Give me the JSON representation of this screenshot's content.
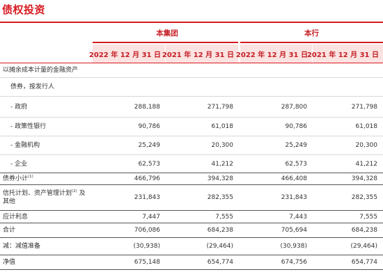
{
  "title": "债权投资",
  "groups": {
    "group": "本集团",
    "bank": "本行"
  },
  "columns": [
    "2022 年 12 月 31 日",
    "2021 年 12 月 31 日",
    "2022 年 12 月 31 日",
    "2021 年 12 月 31 日"
  ],
  "rows": [
    {
      "label": "以摊余成本计量的金融资产",
      "sup": "",
      "label2": "",
      "values": [
        "",
        "",
        "",
        ""
      ]
    },
    {
      "label": "债券，按发行人",
      "sup": "",
      "label2": "",
      "values": [
        "",
        "",
        "",
        ""
      ]
    },
    {
      "label": "- 政府",
      "sup": "",
      "label2": "",
      "values": [
        "288,188",
        "271,798",
        "287,800",
        "271,798"
      ]
    },
    {
      "label": "- 政策性银行",
      "sup": "",
      "label2": "",
      "values": [
        "90,786",
        "61,018",
        "90,786",
        "61,018"
      ]
    },
    {
      "label": "- 金融机构",
      "sup": "",
      "label2": "",
      "values": [
        "25,249",
        "20,300",
        "25,249",
        "20,300"
      ]
    },
    {
      "label": "- 企业",
      "sup": "",
      "label2": "",
      "values": [
        "62,573",
        "41,212",
        "62,573",
        "41,212"
      ]
    },
    {
      "label": "债券小计",
      "sup": "(1)",
      "label2": "",
      "values": [
        "466,796",
        "394,328",
        "466,408",
        "394,328"
      ]
    },
    {
      "label": "信托计划、资产管理计划",
      "sup": "(2)",
      "label2": "其他",
      "label_tail": " 及",
      "values": [
        "231,843",
        "282,355",
        "231,843",
        "282,355"
      ]
    },
    {
      "label": "应计利息",
      "sup": "",
      "label2": "",
      "values": [
        "7,447",
        "7,555",
        "7,443",
        "7,555"
      ]
    },
    {
      "label": "合计",
      "sup": "",
      "label2": "",
      "values": [
        "706,086",
        "684,238",
        "705,694",
        "684,238"
      ]
    },
    {
      "label": "减：减值准备",
      "sup": "",
      "label2": "",
      "values": [
        "(30,938)",
        "(29,464)",
        "(30,938)",
        "(29,464)"
      ]
    },
    {
      "label": "净值",
      "sup": "",
      "label2": "",
      "values": [
        "675,148",
        "654,774",
        "674,756",
        "654,774"
      ]
    }
  ]
}
